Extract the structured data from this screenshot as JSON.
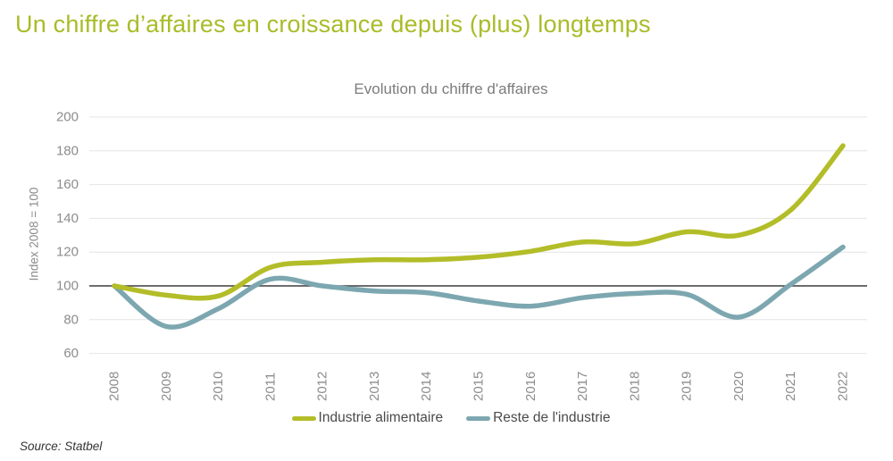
{
  "page": {
    "title": "Un chiffre d’affaires en croissance depuis (plus) longtemps",
    "accent_color": "#a9bc29",
    "background_color": "#ffffff"
  },
  "chart_data": {
    "type": "line",
    "title": "Evolution du chiffre d'affaires",
    "xlabel": "",
    "ylabel": "Index 2008 = 100",
    "categories": [
      "2008",
      "2009",
      "2010",
      "2011",
      "2012",
      "2013",
      "2014",
      "2015",
      "2016",
      "2017",
      "2018",
      "2019",
      "2020",
      "2021",
      "2022"
    ],
    "yticks": [
      60,
      80,
      100,
      120,
      140,
      160,
      180,
      200
    ],
    "ylim": [
      60,
      200
    ],
    "baseline_value": 100,
    "grid": true,
    "legend_position": "bottom",
    "line_style": "smooth",
    "series": [
      {
        "name": "Industrie alimentaire",
        "color": "#b3bd28",
        "values": [
          100,
          94.5,
          94,
          111,
          114,
          115.5,
          115.5,
          117,
          120.5,
          126,
          125,
          132,
          130,
          145,
          183
        ]
      },
      {
        "name": "Reste de l'industrie",
        "color": "#7da7b0",
        "values": [
          100,
          76,
          86.5,
          104,
          100,
          97,
          96,
          91,
          88,
          93,
          95.5,
          95,
          81.5,
          101,
          123
        ]
      }
    ],
    "colors": {
      "grid": "#e4e4e4",
      "baseline": "#3d3d3d",
      "tick_text": "#8c8c8c",
      "title_text": "#7c7c7c"
    }
  },
  "footer": {
    "source": "Source: Statbel"
  }
}
